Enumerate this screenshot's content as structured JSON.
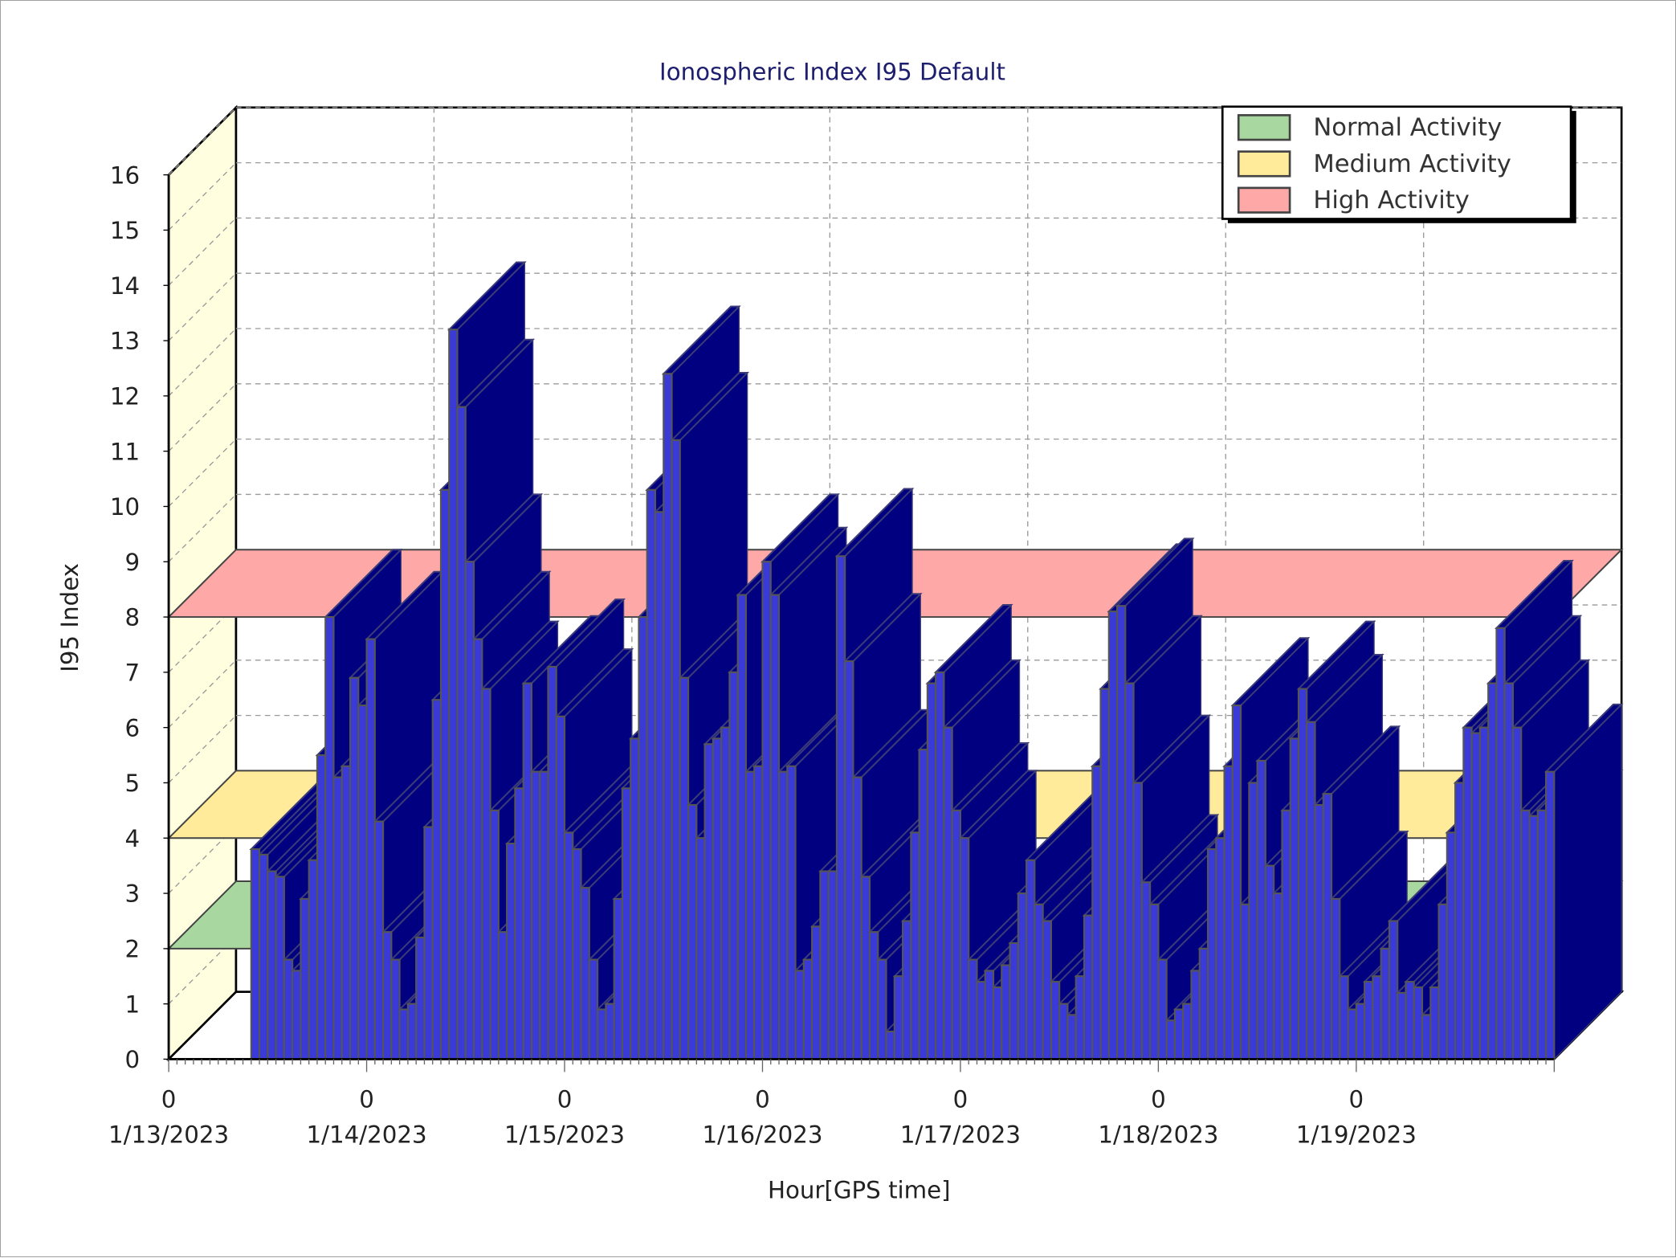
{
  "chart_data": {
    "type": "bar",
    "style": "3d",
    "title": "Ionospheric Index I95 Default",
    "xlabel": "Hour[GPS time]",
    "ylabel": "I95 Index",
    "ylim": [
      0,
      16
    ],
    "yticks": [
      "0",
      "1",
      "2",
      "3",
      "4",
      "5",
      "6",
      "7",
      "8",
      "9",
      "10",
      "11",
      "12",
      "13",
      "14",
      "15",
      "16"
    ],
    "xticks": [
      {
        "hour": "0",
        "date": "1/13/2023"
      },
      {
        "hour": "0",
        "date": "1/14/2023"
      },
      {
        "hour": "0",
        "date": "1/15/2023"
      },
      {
        "hour": "0",
        "date": "1/16/2023"
      },
      {
        "hour": "0",
        "date": "1/17/2023"
      },
      {
        "hour": "0",
        "date": "1/18/2023"
      },
      {
        "hour": "0",
        "date": "1/19/2023"
      }
    ],
    "grid": true,
    "legend_position": "top-right",
    "bar_color": "#3a3ad8",
    "bar_side_color": "#000080",
    "thresholds": [
      {
        "name": "Normal Activity",
        "value": 2,
        "color": "#a8d8a0"
      },
      {
        "name": "Medium Activity",
        "value": 4,
        "color": "#ffeb99"
      },
      {
        "name": "High Activity",
        "value": 8,
        "color": "#ffa8a8"
      }
    ],
    "first_bar": "1/13/2023 10:00",
    "interval": "1 hour",
    "values": [
      3.8,
      3.7,
      3.4,
      3.3,
      1.8,
      1.6,
      2.9,
      3.6,
      5.5,
      8.0,
      5.1,
      5.3,
      6.9,
      6.4,
      7.6,
      4.3,
      2.3,
      1.8,
      0.9,
      1.0,
      2.2,
      4.2,
      6.5,
      10.3,
      13.2,
      11.8,
      9.0,
      7.6,
      6.7,
      4.5,
      2.3,
      3.9,
      4.9,
      6.8,
      5.2,
      5.2,
      7.1,
      6.2,
      4.1,
      3.8,
      3.1,
      1.8,
      0.9,
      1.0,
      2.9,
      4.9,
      5.8,
      8.0,
      10.3,
      9.9,
      12.4,
      11.2,
      6.9,
      4.6,
      4.0,
      5.7,
      5.8,
      6.0,
      7.0,
      8.4,
      5.2,
      5.3,
      9.0,
      8.4,
      5.2,
      5.3,
      1.6,
      1.8,
      2.4,
      3.4,
      3.4,
      9.1,
      7.2,
      5.1,
      3.3,
      2.3,
      1.8,
      0.5,
      1.5,
      2.5,
      4.1,
      5.6,
      6.8,
      7.0,
      6.0,
      4.5,
      4.0,
      1.8,
      1.4,
      1.6,
      1.3,
      1.7,
      2.1,
      3.0,
      3.6,
      2.8,
      2.5,
      1.4,
      1.0,
      0.8,
      1.5,
      2.6,
      5.3,
      6.7,
      8.1,
      8.2,
      6.8,
      5.0,
      3.2,
      2.8,
      1.8,
      0.7,
      0.9,
      1.0,
      1.6,
      2.0,
      3.8,
      4.0,
      5.3,
      6.4,
      2.8,
      5.0,
      5.4,
      3.5,
      3.0,
      4.5,
      5.8,
      6.7,
      6.1,
      4.6,
      4.8,
      2.9,
      1.5,
      0.9,
      1.0,
      1.4,
      1.5,
      2.0,
      2.5,
      1.2,
      1.4,
      1.3,
      0.8,
      1.3,
      2.8,
      4.1,
      5.0,
      6.0,
      5.9,
      6.0,
      6.8,
      7.8,
      6.8,
      6.0,
      4.5,
      4.4,
      4.5,
      5.2
    ]
  }
}
